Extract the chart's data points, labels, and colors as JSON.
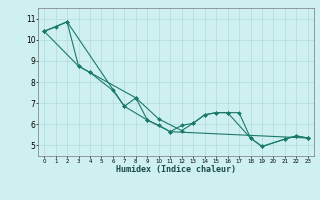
{
  "xlabel": "Humidex (Indice chaleur)",
  "background_color": "#cff0f0",
  "grid_color": "#b8dede",
  "line_color": "#1a7a6a",
  "xlim": [
    -0.5,
    23.5
  ],
  "ylim": [
    4.5,
    11.5
  ],
  "yticks": [
    5,
    6,
    7,
    8,
    9,
    10,
    11
  ],
  "xticks": [
    0,
    1,
    2,
    3,
    4,
    5,
    6,
    7,
    8,
    9,
    10,
    11,
    12,
    13,
    14,
    15,
    16,
    17,
    18,
    19,
    20,
    21,
    22,
    23
  ],
  "series": [
    {
      "x": [
        0,
        1,
        2,
        3,
        4,
        6,
        7,
        8,
        9,
        10,
        11,
        12,
        13,
        14,
        15,
        16,
        18,
        19,
        21,
        22,
        23
      ],
      "y": [
        10.4,
        10.6,
        10.85,
        8.75,
        8.45,
        7.6,
        6.85,
        7.25,
        6.2,
        5.95,
        5.65,
        5.95,
        6.05,
        6.45,
        6.55,
        6.55,
        5.35,
        4.95,
        5.3,
        5.45,
        5.35
      ]
    },
    {
      "x": [
        0,
        2,
        7,
        9,
        11,
        23
      ],
      "y": [
        10.4,
        10.85,
        6.85,
        6.2,
        5.65,
        5.35
      ]
    },
    {
      "x": [
        0,
        3,
        4,
        8,
        10,
        12,
        13,
        14,
        15,
        16,
        17,
        18,
        19,
        21,
        22,
        23
      ],
      "y": [
        10.4,
        8.75,
        8.45,
        7.25,
        6.25,
        5.7,
        6.05,
        6.45,
        6.55,
        6.55,
        6.55,
        5.35,
        4.95,
        5.3,
        5.45,
        5.35
      ]
    }
  ]
}
